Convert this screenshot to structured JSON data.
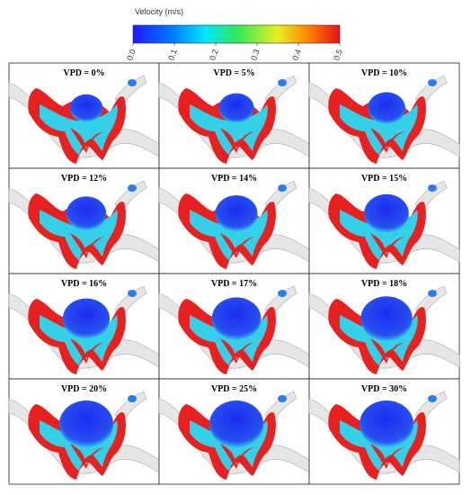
{
  "colorbar": {
    "title": "Velocity (m/s)",
    "ticks": [
      {
        "value": 0,
        "label": "0.0"
      },
      {
        "value": 0.1,
        "label": "0.1"
      },
      {
        "value": 0.2,
        "label": "0.2"
      },
      {
        "value": 0.3,
        "label": "0.3"
      },
      {
        "value": 0.4,
        "label": "0.4"
      },
      {
        "value": 0.5,
        "label": "0.5"
      }
    ],
    "range": [
      0,
      0.5
    ]
  },
  "panels": [
    "VPD = 0%",
    "VPD = 5%",
    "VPD = 10%",
    "VPD = 12%",
    "VPD = 14%",
    "VPD = 15%",
    "VPD = 16%",
    "VPD = 17%",
    "VPD = 18%",
    "VPD = 20%",
    "VPD = 25%",
    "VPD = 30%"
  ]
}
